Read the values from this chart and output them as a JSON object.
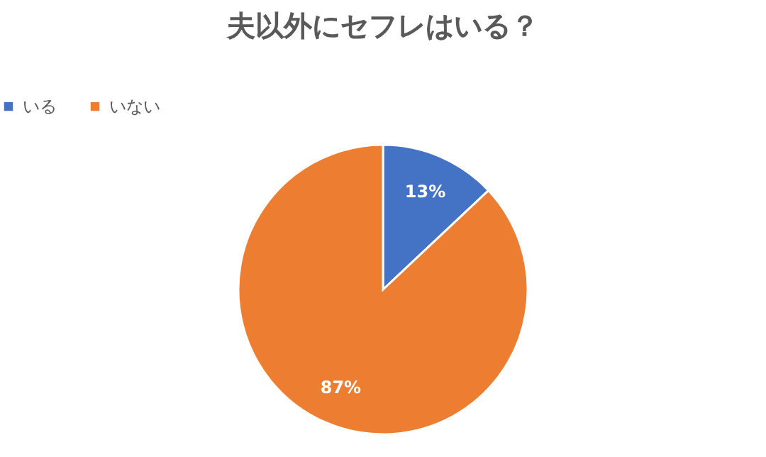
{
  "chart_data": {
    "type": "pie",
    "title": "夫以外にセフレはいる？",
    "categories": [
      "いる",
      "いない"
    ],
    "values": [
      13,
      87
    ],
    "colors": [
      "#4472c4",
      "#ed7d31"
    ],
    "value_labels": [
      "13%",
      "87%"
    ],
    "legend": "top"
  }
}
